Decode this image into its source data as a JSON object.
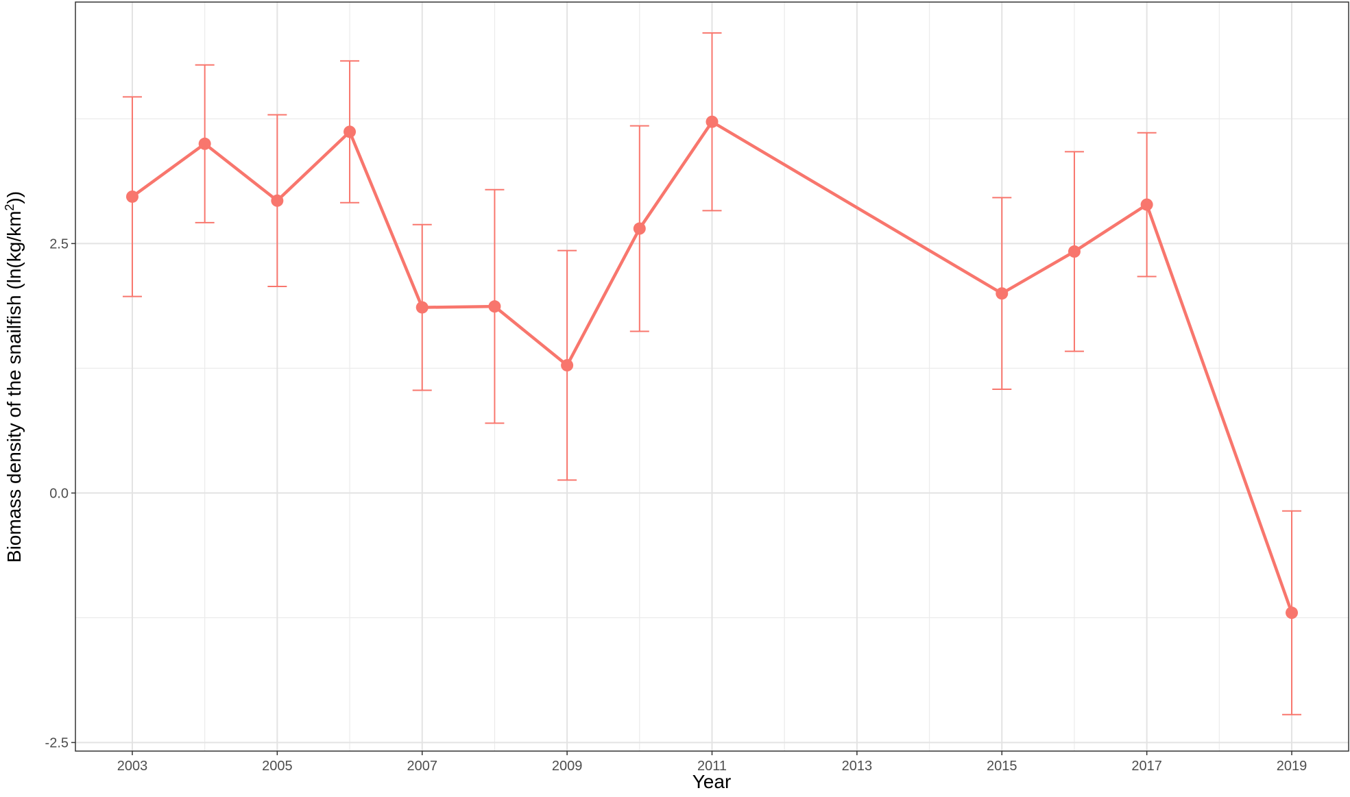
{
  "chart_data": {
    "type": "line",
    "x_label": "Year",
    "y_label": [
      "Biomass density of the snailfish (ln(kg/km",
      "2",
      "))"
    ],
    "x": [
      2003,
      2004,
      2005,
      2006,
      2007,
      2008,
      2009,
      2010,
      2011,
      2015,
      2016,
      2017,
      2019
    ],
    "series": [
      {
        "color": "#F8766D",
        "values": [
          2.97,
          3.5,
          2.93,
          3.62,
          1.86,
          1.87,
          1.28,
          2.65,
          3.72,
          2.0,
          2.42,
          2.89,
          -1.2
        ],
        "errors": [
          1.0,
          0.79,
          0.86,
          0.71,
          0.83,
          1.17,
          1.15,
          1.03,
          0.89,
          0.96,
          1.0,
          0.72,
          1.02
        ]
      }
    ],
    "xlim": [
      2002.215,
      2019.785
    ],
    "xticks": [
      2003,
      2005,
      2007,
      2009,
      2011,
      2013,
      2015,
      2017,
      2019
    ],
    "ylim": [
      -2.586,
      4.92
    ],
    "yticks": [
      {
        "value": -2.5,
        "label": "-2.5"
      },
      {
        "value": 0,
        "label": "0.0"
      },
      2.5
    ],
    "grid": true
  }
}
